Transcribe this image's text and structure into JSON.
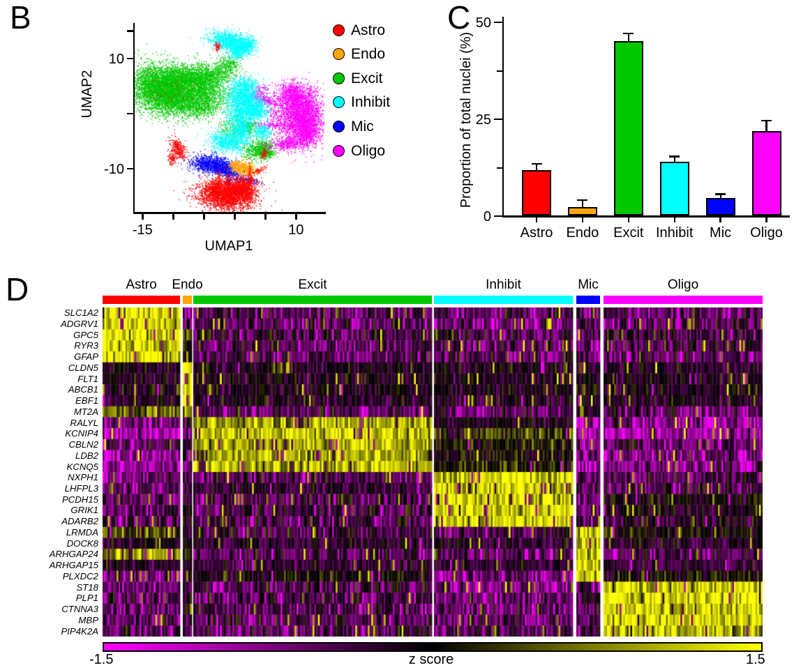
{
  "panel_b": {
    "label": "B",
    "xlabel": "UMAP1",
    "ylabel": "UMAP2",
    "x_tick_values": [
      -15,
      -10,
      -5,
      0,
      5,
      10
    ],
    "x_tick_labels": [
      {
        "value": -15,
        "label": "-15"
      },
      {
        "value": 10,
        "label": "10"
      }
    ],
    "y_tick_values": [
      15,
      10,
      0,
      -10
    ],
    "y_tick_labels": [
      {
        "value": 10,
        "label": "10"
      },
      {
        "value": -10,
        "label": "-10"
      }
    ],
    "legend": [
      {
        "label": "Astro",
        "color": "#ff0000"
      },
      {
        "label": "Endo",
        "color": "#ffa50a"
      },
      {
        "label": "Excit",
        "color": "#00c800"
      },
      {
        "label": "Inhibit",
        "color": "#00ffff"
      },
      {
        "label": "Mic",
        "color": "#0000ff"
      },
      {
        "label": "Oligo",
        "color": "#ff00ff"
      }
    ]
  },
  "panel_c": {
    "label": "C",
    "ylabel": "Proportion of total nuclei (%)",
    "y_tick_labels": [
      "0",
      "25",
      "50"
    ]
  },
  "panel_d": {
    "label": "D",
    "colorbar": {
      "min_label": "-1.5",
      "title": "z score",
      "max_label": "1.5"
    }
  },
  "chart_data": [
    {
      "type": "scatter",
      "name": "umap-clusters",
      "xlabel": "UMAP1",
      "ylabel": "UMAP2",
      "xlim": [
        -16.4,
        14.7
      ],
      "ylim": [
        -18.0,
        16.3
      ],
      "xticks": [
        -15,
        -10,
        -5,
        0,
        5,
        10
      ],
      "yticks": [
        15,
        10,
        0,
        -10
      ],
      "grid": false,
      "clusters": [
        {
          "name": "Excit",
          "color": "#00c800",
          "blobs": [
            [
              -12.3,
              5.0,
              2.4,
              2.0,
              -15,
              3200
            ],
            [
              -8.2,
              6.3,
              2.2,
              1.4,
              10,
              1700
            ],
            [
              -9.6,
              2.6,
              2.6,
              1.6,
              -5,
              1900
            ],
            [
              -5.4,
              4.6,
              1.7,
              1.7,
              0,
              950
            ],
            [
              -3.2,
              7.0,
              1.4,
              1.1,
              20,
              520
            ],
            [
              -0.9,
              9.0,
              0.9,
              1.0,
              0,
              260
            ],
            [
              -5.5,
              1.2,
              1.3,
              0.9,
              0,
              300
            ],
            [
              -2.5,
              3.0,
              1.8,
              1.5,
              0,
              230
            ],
            [
              -0.3,
              -2.5,
              1.4,
              1.2,
              0,
              240
            ],
            [
              4.0,
              -6.4,
              1.3,
              0.9,
              10,
              620
            ],
            [
              2.2,
              -2.3,
              0.8,
              0.7,
              0,
              190
            ],
            [
              5.1,
              -6.9,
              0.6,
              0.6,
              0,
              150
            ]
          ]
        },
        {
          "name": "Oligo",
          "color": "#ff00ff",
          "blobs": [
            [
              10.9,
              -0.5,
              1.7,
              2.6,
              5,
              3300
            ],
            [
              9.6,
              3.4,
              1.3,
              1.0,
              -25,
              750
            ],
            [
              11.8,
              -3.6,
              0.8,
              1.0,
              0,
              320
            ],
            [
              7.0,
              0.3,
              1.2,
              1.8,
              0,
              270
            ],
            [
              4.6,
              2.7,
              1.4,
              0.4,
              -18,
              210
            ],
            [
              6.3,
              -2.1,
              1.6,
              0.3,
              -5,
              150
            ],
            [
              4.1,
              4.3,
              0.8,
              0.6,
              0,
              90
            ],
            [
              8.6,
              -5.3,
              1.5,
              0.6,
              8,
              420
            ]
          ]
        },
        {
          "name": "Inhibit",
          "color": "#00ffff",
          "blobs": [
            [
              -0.8,
              13.2,
              1.7,
              0.85,
              -15,
              1150
            ],
            [
              1.6,
              12.2,
              1.0,
              0.7,
              25,
              480
            ],
            [
              0.2,
              11.2,
              0.6,
              0.6,
              0,
              220
            ],
            [
              1.3,
              3.0,
              1.3,
              1.0,
              0,
              850
            ],
            [
              3.0,
              0.8,
              1.2,
              1.0,
              0,
              800
            ],
            [
              0.8,
              0.0,
              1.2,
              0.9,
              0,
              420
            ],
            [
              1.1,
              -2.9,
              0.9,
              1.2,
              0,
              580
            ],
            [
              -1.2,
              -5.0,
              1.5,
              1.0,
              -8,
              750
            ],
            [
              4.5,
              -3.2,
              0.7,
              0.7,
              0,
              230
            ],
            [
              1.5,
              5.2,
              1.2,
              0.8,
              0,
              400
            ]
          ]
        },
        {
          "name": "Mic",
          "color": "#0000ff",
          "blobs": [
            [
              -3.9,
              -9.2,
              1.7,
              0.85,
              -8,
              1000
            ],
            [
              -1.7,
              -9.9,
              0.9,
              0.6,
              0,
              360
            ],
            [
              -0.2,
              -10.9,
              0.8,
              0.3,
              -20,
              130
            ],
            [
              1.8,
              -12.1,
              1.2,
              0.3,
              -8,
              130
            ],
            [
              -1.0,
              -11.9,
              0.2,
              1.0,
              0,
              95
            ]
          ]
        },
        {
          "name": "Endo",
          "color": "#ffa50a",
          "blobs": [
            [
              1.4,
              -9.9,
              1.05,
              0.6,
              -12,
              520
            ],
            [
              0.0,
              -9.2,
              0.5,
              0.35,
              0,
              95
            ]
          ]
        },
        {
          "name": "Astro",
          "color": "#ff0000",
          "blobs": [
            [
              -1.5,
              -14.8,
              2.3,
              1.3,
              -4,
              2500
            ],
            [
              0.8,
              -13.4,
              1.4,
              0.9,
              25,
              620
            ],
            [
              -3.3,
              -13.3,
              0.7,
              0.9,
              0,
              210
            ],
            [
              -2.6,
              -12.3,
              0.25,
              1.0,
              0,
              95
            ],
            [
              -1.3,
              -12.6,
              0.2,
              1.1,
              0,
              85
            ],
            [
              1.8,
              -14.2,
              0.9,
              1.1,
              0,
              320
            ],
            [
              -9.3,
              -6.3,
              0.55,
              1.05,
              20,
              320
            ],
            [
              -10.3,
              -8.1,
              0.35,
              0.55,
              0,
              85
            ],
            [
              -2.9,
              12.2,
              0.25,
              0.5,
              0,
              55
            ],
            [
              2.4,
              -11.5,
              0.15,
              1.2,
              0,
              75
            ],
            [
              4.7,
              -7.1,
              0.3,
              0.4,
              0,
              60
            ],
            [
              -11.0,
              4.5,
              2.3,
              1.6,
              0,
              45
            ],
            [
              4.0,
              -10.2,
              0.7,
              0.25,
              30,
              60
            ]
          ]
        }
      ]
    },
    {
      "type": "bar",
      "categories": [
        "Astro",
        "Endo",
        "Excit",
        "Inhibit",
        "Mic",
        "Oligo"
      ],
      "values": [
        11.7,
        2.2,
        45.0,
        13.9,
        4.5,
        21.7
      ],
      "errors": [
        1.6,
        1.8,
        2.0,
        1.3,
        1.0,
        2.8
      ],
      "colors": [
        "#ff0000",
        "#ffa50a",
        "#00c800",
        "#00ffff",
        "#0000ff",
        "#ff00ff"
      ],
      "ylabel": "Proportion of total nuclei (%)",
      "xlabel": "",
      "ylim": [
        0,
        50
      ],
      "yticks": [
        {
          "value": 0,
          "label": "0"
        },
        {
          "value": 25,
          "label": "25"
        },
        {
          "value": 50,
          "label": "50"
        }
      ],
      "minor_yticks": [
        12.5,
        37.5
      ],
      "grid": false
    },
    {
      "type": "heatmap",
      "categories": [
        {
          "name": "Astro",
          "color": "#ff0000",
          "relative_width": 111
        },
        {
          "name": "Endo",
          "color": "#ffa50a",
          "relative_width": 13
        },
        {
          "name": "Excit",
          "color": "#00c800",
          "relative_width": 342
        },
        {
          "name": "Inhibit",
          "color": "#00ffff",
          "relative_width": 199
        },
        {
          "name": "Mic",
          "color": "#0000ff",
          "relative_width": 34
        },
        {
          "name": "Oligo",
          "color": "#ff00ff",
          "relative_width": 228
        }
      ],
      "genes": [
        "SLC1A2",
        "ADGRV1",
        "GPC5",
        "RYR3",
        "GFAP",
        "CLDN5",
        "FLT1",
        "ABCB1",
        "EBF1",
        "MT2A",
        "RALYL",
        "KCNIP4",
        "CBLN2",
        "LDB2",
        "KCNQ5",
        "NXPH1",
        "LHFPL3",
        "PCDH15",
        "GRIK1",
        "ADARB2",
        "LRMDA",
        "DOCK8",
        "ARHGAP24",
        "ARHGAP15",
        "PLXDC2",
        "ST18",
        "PLP1",
        "CTNNA3",
        "MBP",
        "PIP4K2A"
      ],
      "expression_mean_z": [
        [
          1.35,
          -0.6,
          -0.45,
          -0.5,
          -0.5,
          -0.5
        ],
        [
          1.3,
          -0.7,
          -0.55,
          -0.55,
          -0.5,
          -0.5
        ],
        [
          1.3,
          0.5,
          -0.4,
          -0.45,
          -0.55,
          -0.35
        ],
        [
          1.2,
          0.2,
          -0.45,
          -0.5,
          -0.55,
          -0.4
        ],
        [
          1.3,
          0.4,
          -0.5,
          -0.5,
          -0.5,
          -0.5
        ],
        [
          -0.15,
          1.35,
          -0.15,
          -0.15,
          -0.1,
          -0.15
        ],
        [
          -0.15,
          1.35,
          -0.15,
          -0.15,
          -0.1,
          -0.15
        ],
        [
          -0.15,
          1.3,
          -0.15,
          -0.15,
          0.05,
          -0.15
        ],
        [
          -0.2,
          1.35,
          -0.15,
          -0.2,
          -0.1,
          -0.2
        ],
        [
          0.7,
          1.2,
          -0.45,
          -0.4,
          -0.1,
          -0.55
        ],
        [
          -0.75,
          -0.35,
          1.0,
          -0.15,
          -0.85,
          -0.7
        ],
        [
          -1.0,
          -0.5,
          1.15,
          0.4,
          -1.05,
          -0.95
        ],
        [
          -0.55,
          -0.3,
          1.0,
          0.1,
          -0.7,
          -0.55
        ],
        [
          -0.85,
          -0.4,
          1.0,
          0.0,
          -0.8,
          -0.7
        ],
        [
          -1.0,
          -0.45,
          1.05,
          0.15,
          -0.85,
          -0.8
        ],
        [
          -0.5,
          -0.3,
          -0.45,
          1.25,
          -0.5,
          -0.4
        ],
        [
          -0.45,
          -0.3,
          -0.3,
          1.2,
          -0.5,
          -0.35
        ],
        [
          -0.5,
          -0.3,
          -0.4,
          1.15,
          -0.4,
          0.05
        ],
        [
          -0.5,
          -0.3,
          -0.35,
          1.15,
          -0.55,
          -0.1
        ],
        [
          -0.45,
          -0.3,
          -0.4,
          1.15,
          -0.45,
          -0.2
        ],
        [
          0.45,
          -0.2,
          -0.35,
          -0.4,
          1.2,
          0.0
        ],
        [
          -0.15,
          -0.1,
          -0.2,
          -0.25,
          1.25,
          -0.2
        ],
        [
          0.9,
          0.2,
          -0.45,
          -0.5,
          1.2,
          -0.45
        ],
        [
          -0.2,
          -0.15,
          -0.3,
          -0.3,
          1.25,
          -0.3
        ],
        [
          -0.7,
          -0.3,
          -0.05,
          -0.7,
          1.3,
          0.1
        ],
        [
          -0.6,
          -0.3,
          -0.35,
          -0.7,
          -0.4,
          1.2
        ],
        [
          -0.5,
          -0.2,
          -0.45,
          -0.5,
          -0.3,
          1.3
        ],
        [
          -0.6,
          -0.3,
          -0.5,
          -0.55,
          -0.45,
          1.25
        ],
        [
          -0.5,
          -0.2,
          -0.45,
          -0.5,
          -0.3,
          1.3
        ],
        [
          -0.55,
          -0.3,
          -0.45,
          -0.55,
          -0.4,
          1.15
        ]
      ],
      "zlim": [
        -1.5,
        1.5
      ],
      "colormap": [
        "#ff00ff",
        "#000000",
        "#ffff00"
      ],
      "colorbar": {
        "min_label": "-1.5",
        "title": "z score",
        "max_label": "1.5"
      }
    }
  ]
}
